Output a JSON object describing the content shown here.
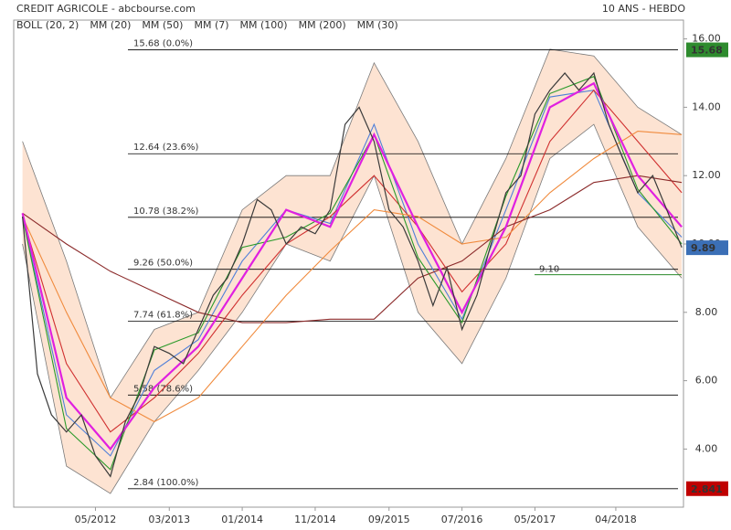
{
  "chart_data": {
    "type": "line",
    "title": "CREDIT AGRICOLE - abcbourse.com",
    "subtitle": "10 ANS - HEBDO",
    "xlim": [
      2011.4,
      2019.02
    ],
    "xticks": [
      {
        "value": 2012.33,
        "label": "05/2012"
      },
      {
        "value": 2013.17,
        "label": "03/2013"
      },
      {
        "value": 2014.0,
        "label": "01/2014"
      },
      {
        "value": 2014.83,
        "label": "11/2014"
      },
      {
        "value": 2015.67,
        "label": "09/2015"
      },
      {
        "value": 2016.5,
        "label": "07/2016"
      },
      {
        "value": 2017.33,
        "label": "05/2017"
      },
      {
        "value": 2018.25,
        "label": "04/2018"
      }
    ],
    "ylim": [
      2.3,
      16.55
    ],
    "yticks": [
      {
        "value": 4,
        "label": "4.00"
      },
      {
        "value": 6,
        "label": "6.00"
      },
      {
        "value": 8,
        "label": "8.00"
      },
      {
        "value": 10,
        "label": "10.00"
      },
      {
        "value": 12,
        "label": "12.00"
      },
      {
        "value": 14,
        "label": "14.00"
      },
      {
        "value": 16,
        "label": "16.00"
      }
    ],
    "price": {
      "color": "#3a3a3a",
      "x": [
        2011.5,
        2011.67,
        2011.83,
        2012.0,
        2012.17,
        2012.33,
        2012.5,
        2012.67,
        2012.83,
        2013.0,
        2013.17,
        2013.33,
        2013.5,
        2013.67,
        2013.83,
        2014.0,
        2014.17,
        2014.33,
        2014.5,
        2014.67,
        2014.83,
        2015.0,
        2015.17,
        2015.33,
        2015.5,
        2015.67,
        2015.83,
        2016.0,
        2016.17,
        2016.33,
        2016.5,
        2016.67,
        2016.83,
        2017.0,
        2017.17,
        2017.33,
        2017.5,
        2017.67,
        2017.83,
        2018.0,
        2018.17,
        2018.33,
        2018.5,
        2018.67,
        2018.83,
        2019.0
      ],
      "values": [
        10.8,
        6.2,
        5.0,
        4.5,
        5.0,
        3.8,
        3.2,
        4.8,
        5.6,
        7.0,
        6.8,
        6.5,
        7.5,
        8.5,
        9.0,
        10.0,
        11.3,
        11.0,
        10.0,
        10.5,
        10.3,
        11.0,
        13.5,
        14.0,
        13.0,
        11.0,
        10.5,
        9.5,
        8.2,
        9.3,
        7.5,
        8.5,
        10.0,
        11.5,
        12.0,
        13.8,
        14.5,
        15.0,
        14.5,
        15.0,
        13.5,
        12.5,
        11.5,
        12.0,
        11.0,
        9.9
      ]
    },
    "band": {
      "name": "BOLL (20, 2)",
      "color": "#fde3d2",
      "stroke": "#7a7a7a",
      "x": [
        2011.5,
        2012.0,
        2012.5,
        2013.0,
        2013.5,
        2014.0,
        2014.5,
        2015.0,
        2015.5,
        2016.0,
        2016.5,
        2017.0,
        2017.5,
        2018.0,
        2018.5,
        2019.0
      ],
      "upper": [
        13.0,
        9.5,
        5.5,
        7.5,
        8.0,
        11.0,
        12.0,
        12.0,
        15.3,
        13.0,
        10.0,
        12.5,
        15.7,
        15.5,
        14.0,
        13.2
      ],
      "lower": [
        10.0,
        3.5,
        2.7,
        4.8,
        6.3,
        8.0,
        10.0,
        9.5,
        12.0,
        8.0,
        6.5,
        9.0,
        12.5,
        13.5,
        10.5,
        9.0
      ]
    },
    "series": [
      {
        "name": "MM (20)",
        "color": "#4f7fd9",
        "x": [
          2011.5,
          2012.0,
          2012.5,
          2013.0,
          2013.5,
          2014.0,
          2014.5,
          2015.0,
          2015.5,
          2016.0,
          2016.5,
          2017.0,
          2017.5,
          2018.0,
          2018.5,
          2019.0
        ],
        "values": [
          10.8,
          5.0,
          3.8,
          6.3,
          7.2,
          9.5,
          11.0,
          10.6,
          13.5,
          10.0,
          7.8,
          11.0,
          14.3,
          14.5,
          11.5,
          10.2
        ]
      },
      {
        "name": "MM (50)",
        "color": "#d03030",
        "x": [
          2011.5,
          2012.0,
          2012.5,
          2013.0,
          2013.5,
          2014.0,
          2014.5,
          2015.0,
          2015.5,
          2016.0,
          2016.5,
          2017.0,
          2017.5,
          2018.0,
          2018.5,
          2019.0
        ],
        "values": [
          10.8,
          6.5,
          4.5,
          5.5,
          6.8,
          8.5,
          10.0,
          10.8,
          12.0,
          10.5,
          8.6,
          10.0,
          13.0,
          14.5,
          13.0,
          11.5
        ]
      },
      {
        "name": "MM (7)",
        "color": "#2a9a2a",
        "x": [
          2011.5,
          2012.0,
          2012.5,
          2013.0,
          2013.5,
          2014.0,
          2014.5,
          2015.0,
          2015.5,
          2016.0,
          2016.5,
          2017.0,
          2017.5,
          2018.0,
          2018.5,
          2019.0
        ],
        "values": [
          10.8,
          4.6,
          3.4,
          6.9,
          7.4,
          9.9,
          10.2,
          10.9,
          13.2,
          9.6,
          7.7,
          11.4,
          14.4,
          14.9,
          11.6,
          10.0
        ]
      },
      {
        "name": "MM (100)",
        "color": "#f08a3c",
        "x": [
          2011.5,
          2012.0,
          2012.5,
          2013.0,
          2013.5,
          2014.0,
          2014.5,
          2015.0,
          2015.5,
          2016.0,
          2016.5,
          2017.0,
          2017.5,
          2018.0,
          2018.5,
          2019.0
        ],
        "values": [
          10.8,
          8.0,
          5.5,
          4.8,
          5.5,
          7.0,
          8.5,
          9.8,
          11.0,
          10.8,
          10.0,
          10.2,
          11.5,
          12.5,
          13.3,
          13.2
        ]
      },
      {
        "name": "MM (200)",
        "color": "#8b2a2a",
        "x": [
          2011.5,
          2012.0,
          2012.5,
          2013.0,
          2013.5,
          2014.0,
          2014.5,
          2015.0,
          2015.5,
          2016.0,
          2016.5,
          2017.0,
          2017.5,
          2018.0,
          2018.5,
          2019.0
        ],
        "values": [
          10.9,
          10.0,
          9.2,
          8.6,
          8.0,
          7.7,
          7.7,
          7.8,
          7.8,
          9.0,
          9.5,
          10.5,
          11.0,
          11.8,
          12.0,
          11.8
        ]
      },
      {
        "name": "MM (30)",
        "color": "#e020e0",
        "x": [
          2011.5,
          2012.0,
          2012.5,
          2013.0,
          2013.5,
          2014.0,
          2014.5,
          2015.0,
          2015.5,
          2016.0,
          2016.5,
          2017.0,
          2017.5,
          2018.0,
          2018.5,
          2019.0
        ],
        "values": [
          10.9,
          5.5,
          4.0,
          5.8,
          7.0,
          9.0,
          11.0,
          10.5,
          13.2,
          10.5,
          8.0,
          10.5,
          14.0,
          14.7,
          12.0,
          10.5
        ]
      }
    ],
    "levels": [
      {
        "value": 15.68,
        "label": "15.68  (0.0%)"
      },
      {
        "value": 12.64,
        "label": "12.64  (23.6%)"
      },
      {
        "value": 10.78,
        "label": "10.78  (38.2%)"
      },
      {
        "value": 9.26,
        "label": "9.26  (50.0%)"
      },
      {
        "value": 7.74,
        "label": "7.74  (61.8%)"
      },
      {
        "value": 5.58,
        "label": "5.58  (78.6%)"
      },
      {
        "value": 2.84,
        "label": "2.84  (100.0%)"
      }
    ],
    "support": {
      "value": 9.1,
      "label": "9.10",
      "color": "#2a8a2a"
    },
    "tags": [
      {
        "value": 15.68,
        "color": "#2e8b2e"
      },
      {
        "value": 9.89,
        "color": "#3b6fb6"
      },
      {
        "value": 2.841,
        "color": "#c00000"
      }
    ]
  }
}
